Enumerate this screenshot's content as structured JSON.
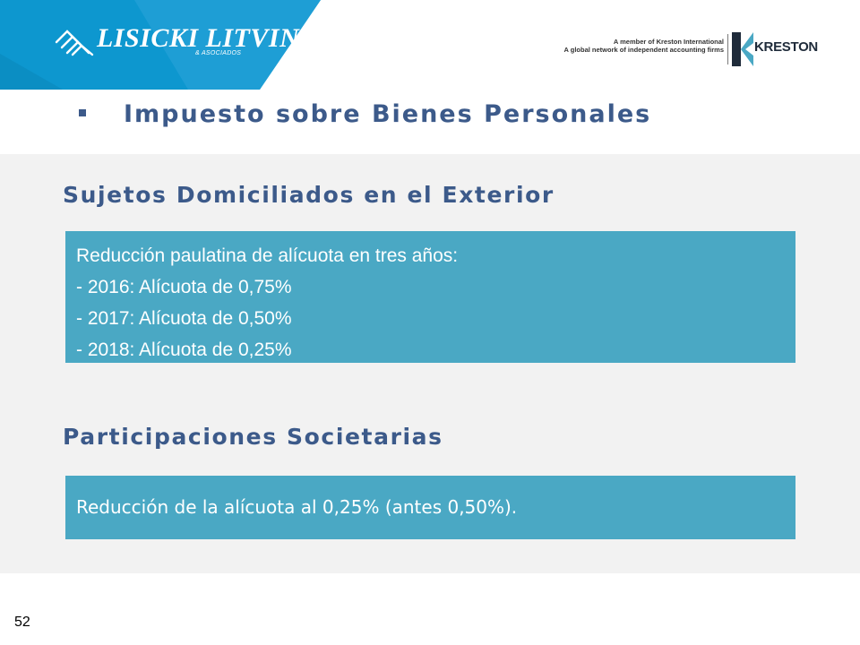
{
  "header": {
    "firm_logo_text": "LISICKI LITVIN",
    "firm_logo_subtitle": "& ASOCIADOS",
    "kreston_member_line1": "A member of Kreston International",
    "kreston_member_line2": "A global network of independent accounting firms",
    "kreston_logo_text": "KRESTON",
    "colors": {
      "brand_band": "#0d97cf",
      "brand_band_light": "#3fb0df"
    }
  },
  "title": "Impuesto sobre Bienes Personales",
  "sections": [
    {
      "heading": "Sujetos Domiciliados en el Exterior",
      "lines": [
        "Reducción paulatina de alícuota en tres años:",
        "- 2016: Alícuota de 0,75%",
        "- 2017: Alícuota de 0,50%",
        "- 2018: Alícuota de 0,25%"
      ]
    },
    {
      "heading": "Participaciones Societarias",
      "lines": [
        "Reducción de la alícuota al 0,25% (antes 0,50%)."
      ]
    }
  ],
  "page_number": "52",
  "colors": {
    "heading_blue": "#3c5a8a",
    "box_blue": "#4aa8c4",
    "content_background": "#f2f2f2"
  }
}
